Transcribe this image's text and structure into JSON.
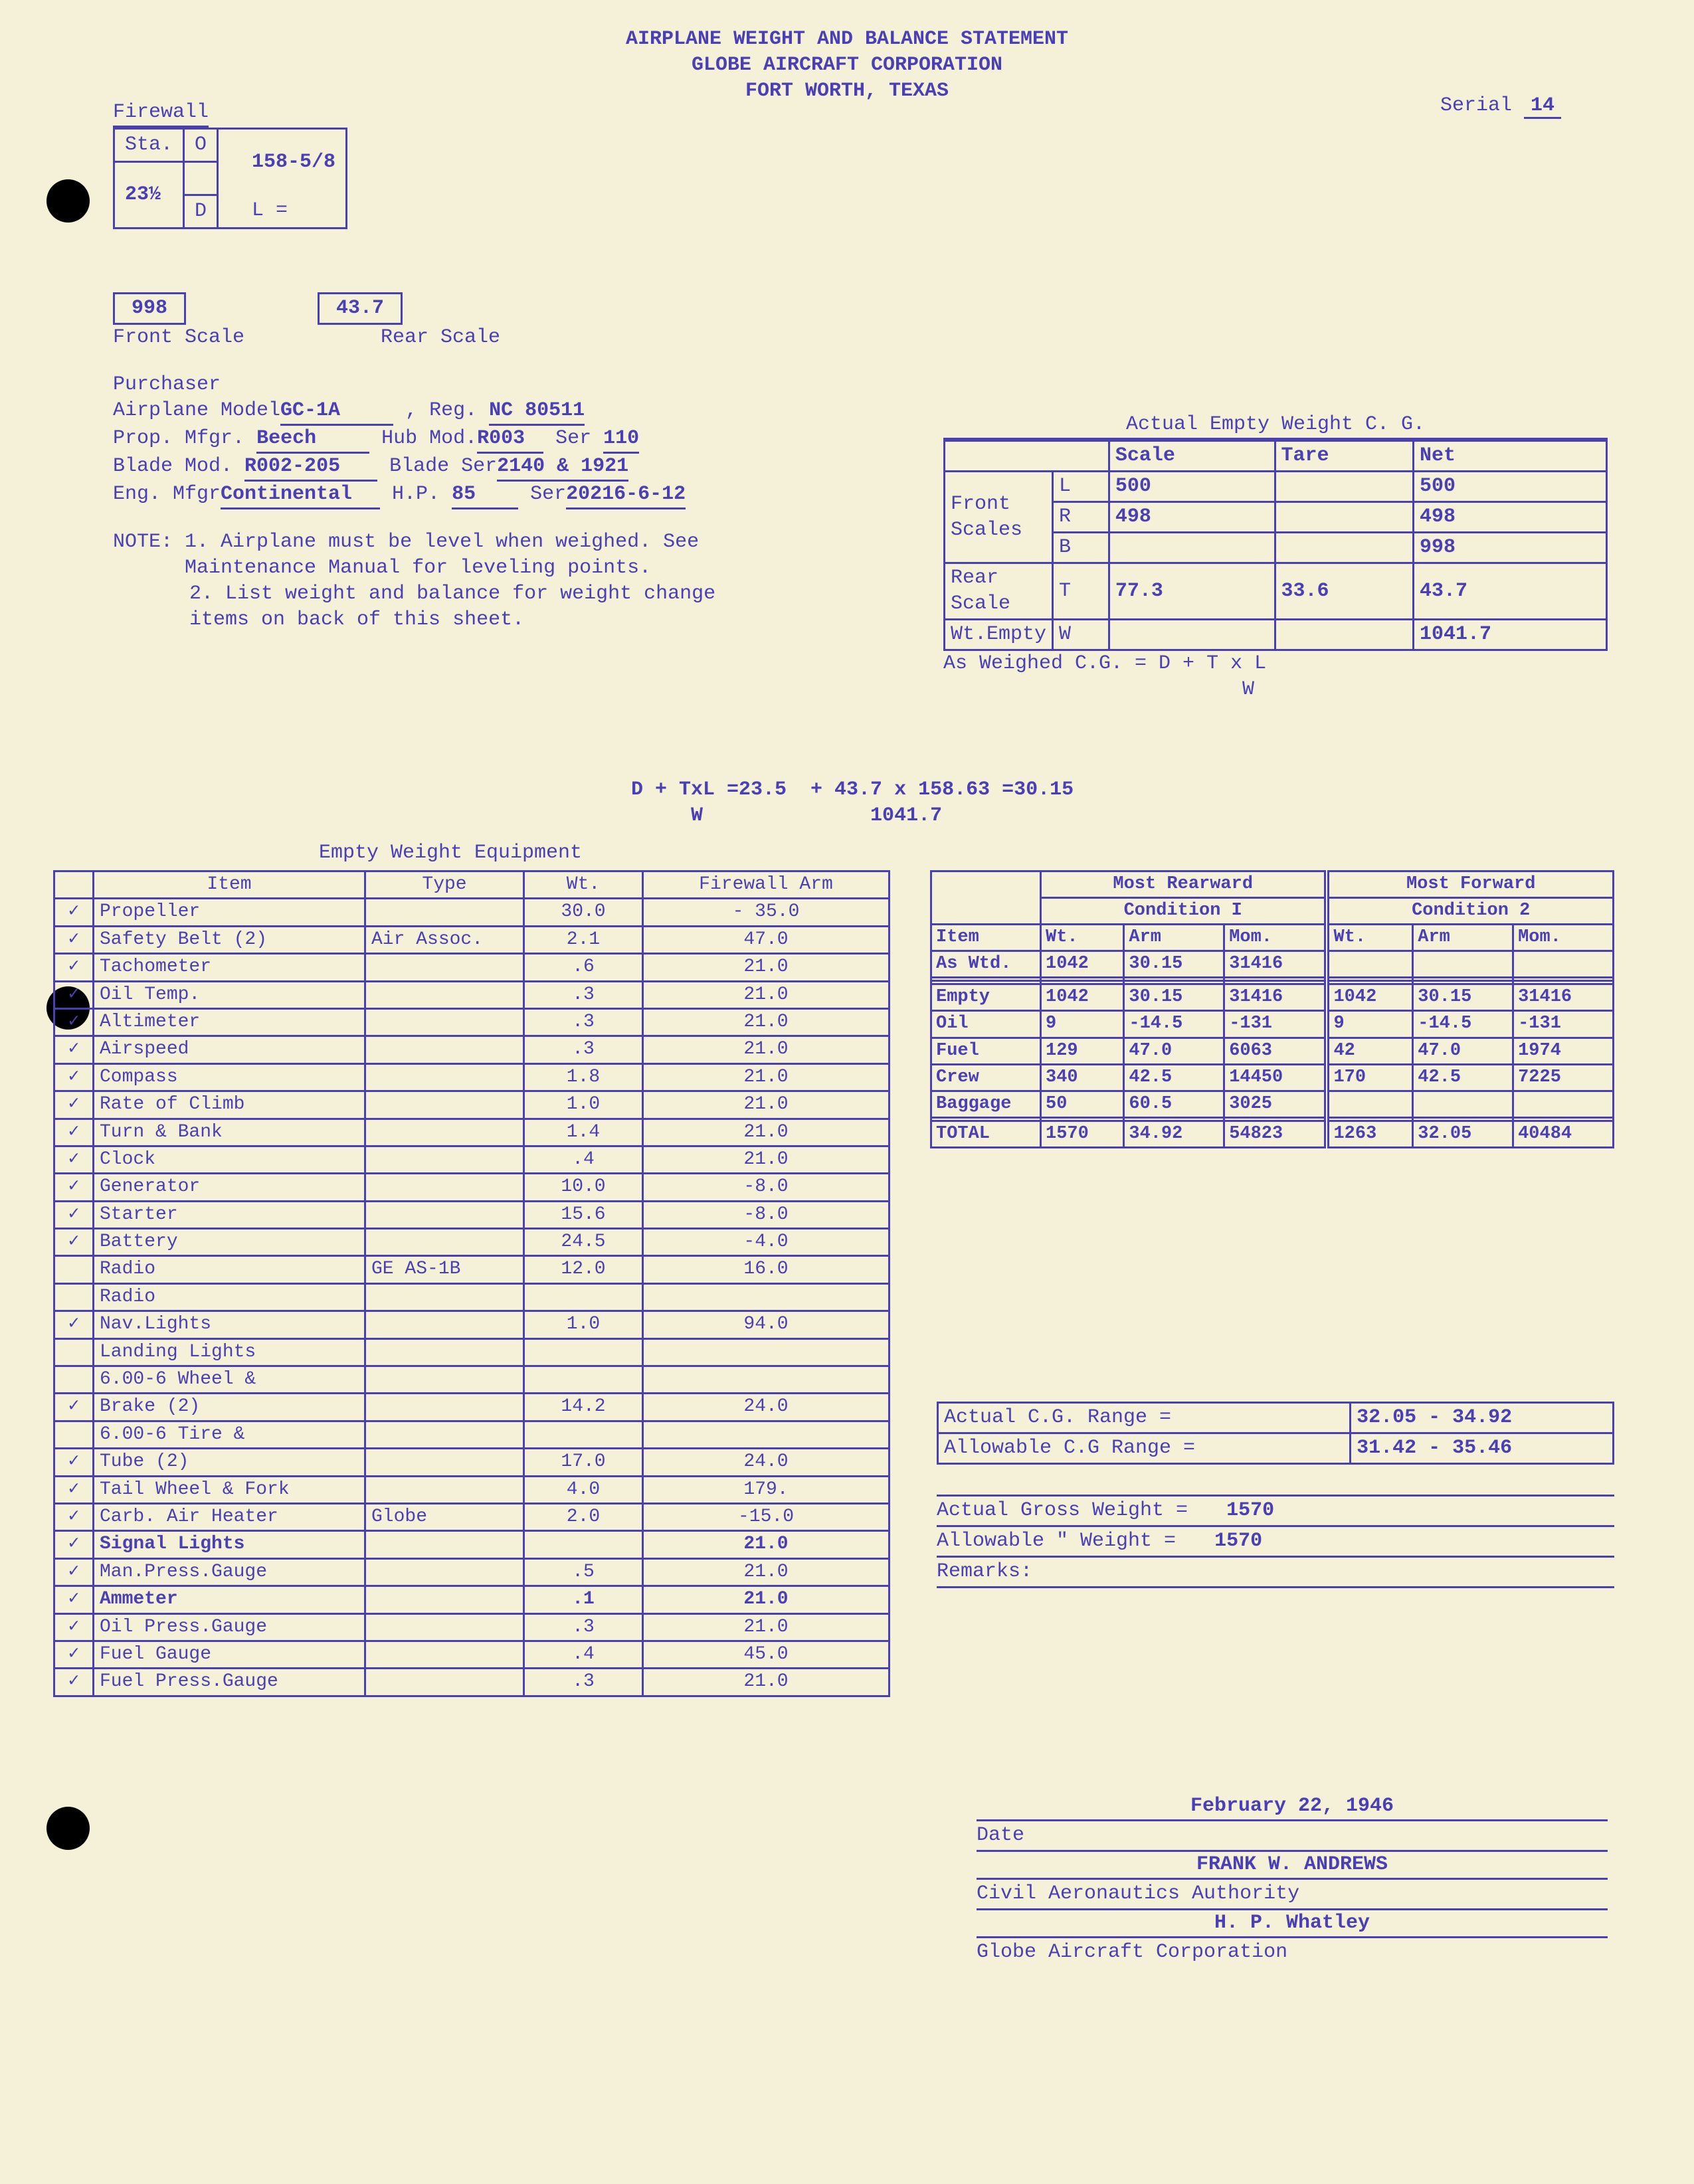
{
  "header": {
    "line1": "AIRPLANE WEIGHT AND BALANCE STATEMENT",
    "line2": "GLOBE AIRCRAFT CORPORATION",
    "line3": "FORT WORTH, TEXAS",
    "serial_label": "Serial",
    "serial_value": "14"
  },
  "firewall": {
    "label": "Firewall",
    "sta": "Sta.",
    "sta_val": "23½",
    "O": "O",
    "D": "D",
    "dist": "158-5/8",
    "L": "L ="
  },
  "scales": {
    "front_val": "998",
    "front_label": "Front Scale",
    "rear_val": "43.7",
    "rear_label": "Rear Scale"
  },
  "info": {
    "purchaser": "Purchaser",
    "airplane_model": "Airplane Model",
    "airplane_model_val": "GC-1A",
    "reg": ", Reg.",
    "reg_val": "NC 80511",
    "prop_mfgr": "Prop. Mfgr.",
    "prop_mfgr_val": "Beech",
    "hub_mod": "Hub Mod.",
    "hub_mod_val": "R003",
    "ser": "Ser",
    "ser_val": "110",
    "blade_mod": "Blade Mod.",
    "blade_mod_val": "R002-205",
    "blade_ser": "Blade Ser",
    "blade_ser_val": "2140  & 1921",
    "eng_mfgr": "Eng. Mfgr",
    "eng_mfgr_val": "Continental",
    "hp": "H.P.",
    "hp_val": "85",
    "eng_ser": "Ser",
    "eng_ser_val": "20216-6-12",
    "note_label": "NOTE:",
    "note1": "1.  Airplane must be level when weighed. See Maintenance Manual for leveling points.",
    "note2": "2.  List weight and balance for weight change items on back of this sheet."
  },
  "actual_empty": {
    "title": "Actual Empty Weight C. G.",
    "scale": "Scale",
    "tare": "Tare",
    "net": "Net",
    "front_scales": "Front Scales",
    "L": "L",
    "R": "R",
    "B": "B",
    "T": "T",
    "W": "W",
    "l_scale": "500",
    "l_net": "500",
    "r_scale": "498",
    "r_net": "498",
    "b_net": "998",
    "rear_scale": "Rear Scale",
    "t_scale": "77.3",
    "t_tare": "33.6",
    "t_net": "43.7",
    "wt_empty": "Wt.Empty",
    "w_net": "1041.7",
    "as_weighed": "As Weighed C.G.  = D + T x L",
    "as_weighed_2": "W"
  },
  "formula": {
    "line1": "D + TxL =23.5  + 43.7 x 158.63 =30.15",
    "line2": "     W              1041.7"
  },
  "equip_title": "Empty Weight Equipment",
  "equip_headers": {
    "item": "Item",
    "type": "Type",
    "wt": "Wt.",
    "arm": "Firewall Arm"
  },
  "equip": [
    {
      "c": "✓",
      "item": "Propeller",
      "type": "",
      "wt": "30.0",
      "arm": "- 35.0"
    },
    {
      "c": "✓",
      "item": "Safety Belt (2)",
      "type": "Air Assoc.",
      "wt": "2.1",
      "arm": "47.0"
    },
    {
      "c": "✓",
      "item": "Tachometer",
      "type": "",
      "wt": ".6",
      "arm": "21.0"
    },
    {
      "c": "✓",
      "item": "Oil Temp.",
      "type": "",
      "wt": ".3",
      "arm": "21.0"
    },
    {
      "c": "✓",
      "item": "Altimeter",
      "type": "",
      "wt": ".3",
      "arm": "21.0"
    },
    {
      "c": "✓",
      "item": "Airspeed",
      "type": "",
      "wt": ".3",
      "arm": "21.0"
    },
    {
      "c": "✓",
      "item": "Compass",
      "type": "",
      "wt": "1.8",
      "arm": "21.0"
    },
    {
      "c": "✓",
      "item": "Rate of Climb",
      "type": "",
      "wt": "1.0",
      "arm": "21.0"
    },
    {
      "c": "✓",
      "item": "Turn & Bank",
      "type": "",
      "wt": "1.4",
      "arm": "21.0"
    },
    {
      "c": "✓",
      "item": "Clock",
      "type": "",
      "wt": ".4",
      "arm": "21.0"
    },
    {
      "c": "✓",
      "item": "Generator",
      "type": "",
      "wt": "10.0",
      "arm": "-8.0"
    },
    {
      "c": "✓",
      "item": "Starter",
      "type": "",
      "wt": "15.6",
      "arm": "-8.0"
    },
    {
      "c": "✓",
      "item": "Battery",
      "type": "",
      "wt": "24.5",
      "arm": "-4.0"
    },
    {
      "c": "",
      "item": "Radio",
      "type": "GE AS-1B",
      "wt": "12.0",
      "arm": "16.0"
    },
    {
      "c": "",
      "item": "Radio",
      "type": "",
      "wt": "",
      "arm": ""
    },
    {
      "c": "✓",
      "item": "Nav.Lights",
      "type": "",
      "wt": "1.0",
      "arm": "94.0"
    },
    {
      "c": "",
      "item": "Landing Lights",
      "type": "",
      "wt": "",
      "arm": ""
    },
    {
      "c": "",
      "item": "6.00-6 Wheel &",
      "type": "",
      "wt": "",
      "arm": ""
    },
    {
      "c": "✓",
      "item": "  Brake (2)",
      "type": "",
      "wt": "14.2",
      "arm": "24.0"
    },
    {
      "c": "",
      "item": "6.00-6 Tire &",
      "type": "",
      "wt": "",
      "arm": ""
    },
    {
      "c": "✓",
      "item": "  Tube (2)",
      "type": "",
      "wt": "17.0",
      "arm": "24.0"
    },
    {
      "c": "✓",
      "item": "Tail Wheel & Fork",
      "type": "",
      "wt": "4.0",
      "arm": "179."
    },
    {
      "c": "✓",
      "item": "Carb. Air Heater",
      "type": "Globe",
      "wt": "2.0",
      "arm": "-15.0"
    },
    {
      "c": "✓",
      "item": "Signal Lights",
      "type": "",
      "wt": "",
      "arm": "21.0",
      "bold": true
    },
    {
      "c": "✓",
      "item": "Man.Press.Gauge",
      "type": "",
      "wt": ".5",
      "arm": "21.0"
    },
    {
      "c": "✓",
      "item": "Ammeter",
      "type": "",
      "wt": ".1",
      "arm": "21.0",
      "bold": true
    },
    {
      "c": "✓",
      "item": "Oil Press.Gauge",
      "type": "",
      "wt": ".3",
      "arm": "21.0"
    },
    {
      "c": "✓",
      "item": "Fuel Gauge",
      "type": "",
      "wt": ".4",
      "arm": "45.0"
    },
    {
      "c": "✓",
      "item": "Fuel Press.Gauge",
      "type": "",
      "wt": ".3",
      "arm": "21.0"
    }
  ],
  "cond": {
    "most_rearward": "Most Rearward",
    "most_forward": "Most Forward",
    "item": "Item",
    "cond1": "Condition I",
    "cond2": "Condition 2",
    "wt": "Wt.",
    "arm": "Arm",
    "mom": "Mom.",
    "rows": [
      {
        "item": "As Wtd.",
        "w1": "1042",
        "a1": "30.15",
        "m1": "31416",
        "w2": "",
        "a2": "",
        "m2": ""
      },
      {
        "item": "",
        "w1": "",
        "a1": "",
        "m1": "",
        "w2": "",
        "a2": "",
        "m2": ""
      },
      {
        "item": "",
        "w1": "",
        "a1": "",
        "m1": "",
        "w2": "",
        "a2": "",
        "m2": ""
      },
      {
        "item": "Empty",
        "w1": "1042",
        "a1": "30.15",
        "m1": "31416",
        "w2": "1042",
        "a2": "30.15",
        "m2": "31416"
      },
      {
        "item": "Oil",
        "w1": "9",
        "a1": "-14.5",
        "m1": "-131",
        "w2": "9",
        "a2": "-14.5",
        "m2": "-131"
      },
      {
        "item": "Fuel",
        "w1": "129",
        "a1": "47.0",
        "m1": "6063",
        "w2": "42",
        "a2": "47.0",
        "m2": "1974"
      },
      {
        "item": "Crew",
        "w1": "340",
        "a1": "42.5",
        "m1": "14450",
        "w2": "170",
        "a2": "42.5",
        "m2": "7225"
      },
      {
        "item": "Baggage",
        "w1": "50",
        "a1": "60.5",
        "m1": "3025",
        "w2": "",
        "a2": "",
        "m2": ""
      },
      {
        "item": "",
        "w1": "",
        "a1": "",
        "m1": "",
        "w2": "",
        "a2": "",
        "m2": ""
      },
      {
        "item": "TOTAL",
        "w1": "1570",
        "a1": "34.92",
        "m1": "54823",
        "w2": "1263",
        "a2": "32.05",
        "m2": "40484"
      }
    ],
    "actual_cg": "Actual C.G. Range  =",
    "actual_cg_val": "32.05 - 34.92",
    "allow_cg": "Allowable C.G  Range =",
    "allow_cg_val": "31.42 - 35.46"
  },
  "results": {
    "actual_gross": "Actual Gross Weight   =",
    "actual_gross_val": "1570",
    "allowable": "Allowable \"  Weight   =",
    "allowable_val": "1570",
    "remarks": "Remarks:"
  },
  "sigs": {
    "date_val": "February 22, 1946",
    "date": "Date",
    "name1": "FRANK W. ANDREWS",
    "auth1": "Civil Aeronautics Authority",
    "name2": "H. P. Whatley",
    "auth2": "Globe Aircraft Corporation"
  }
}
